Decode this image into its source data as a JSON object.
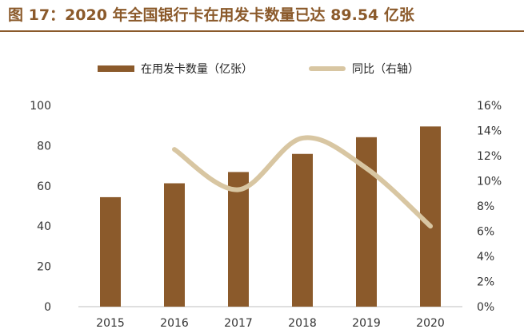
{
  "title": "图 17：2020 年全国银行卡在用发卡数量已达 89.54 亿张",
  "chart_data": {
    "type": "bar",
    "categories": [
      "2015",
      "2016",
      "2017",
      "2018",
      "2019",
      "2020"
    ],
    "series": [
      {
        "name": "在用发卡数量（亿张）",
        "type": "bar",
        "axis": "left",
        "values": [
          54.4,
          61.3,
          66.9,
          75.9,
          84.2,
          89.54
        ],
        "color": "#8B5A2B"
      },
      {
        "name": "同比（右轴）",
        "type": "line",
        "axis": "right",
        "smooth": true,
        "values": [
          12.5,
          9.3,
          13.4,
          11.0,
          6.4
        ],
        "x": [
          "2016",
          "2017",
          "2018",
          "2019",
          "2020"
        ],
        "color": "#D8C6A2"
      }
    ],
    "left_axis": {
      "ylim": [
        0,
        100
      ],
      "ticks": [
        "0",
        "20",
        "40",
        "60",
        "80",
        "100"
      ]
    },
    "right_axis": {
      "ylim": [
        0,
        16
      ],
      "ticks": [
        "0%",
        "2%",
        "4%",
        "6%",
        "8%",
        "10%",
        "12%",
        "14%",
        "16%"
      ]
    },
    "grid": false,
    "legend_position": "top"
  }
}
